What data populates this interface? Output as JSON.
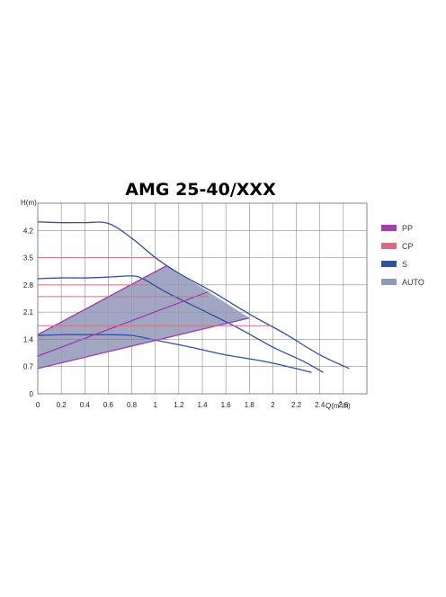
{
  "chart_data": {
    "type": "line",
    "title": "AMG 25-40/XXX",
    "ylabel": "H(m)",
    "xlabel_prefix": "Q(m",
    "xlabel_sup": "3",
    "xlabel_suffix": "/h)",
    "xlim": [
      0,
      2.8
    ],
    "ylim": [
      0,
      4.9
    ],
    "x_ticks": [
      "0",
      "0.2",
      "0.4",
      "0.6",
      "0.8",
      "1",
      "1.2",
      "1.4",
      "1.6",
      "1.8",
      "2",
      "2.2",
      "2.4",
      "2.6"
    ],
    "y_ticks": [
      "0",
      "0.7",
      "1.4",
      "2.1",
      "2.8",
      "3.5",
      "4.2"
    ],
    "grid": true,
    "legend_position": "right",
    "colors": {
      "PP": "#a040b0",
      "CP": "#d07080",
      "S": "#3050a0",
      "AUTO": "#9098b8"
    },
    "legend": [
      {
        "key": "PP",
        "label": "PP"
      },
      {
        "key": "CP",
        "label": "CP"
      },
      {
        "key": "S",
        "label": "S"
      },
      {
        "key": "AUTO",
        "label": "AUTO"
      }
    ],
    "auto_region": [
      [
        0,
        0.65
      ],
      [
        0,
        1.52
      ],
      [
        1.1,
        3.3
      ],
      [
        1.8,
        1.95
      ]
    ],
    "series": [
      {
        "key": "S",
        "points": [
          [
            0,
            4.42
          ],
          [
            0.2,
            4.4
          ],
          [
            0.4,
            4.4
          ],
          [
            0.6,
            4.38
          ],
          [
            0.8,
            4.0
          ],
          [
            1.0,
            3.5
          ],
          [
            1.2,
            3.1
          ],
          [
            1.5,
            2.6
          ],
          [
            1.8,
            2.05
          ],
          [
            2.1,
            1.55
          ],
          [
            2.4,
            1.0
          ],
          [
            2.65,
            0.65
          ]
        ]
      },
      {
        "key": "S",
        "points": [
          [
            0,
            2.96
          ],
          [
            0.2,
            2.98
          ],
          [
            0.4,
            2.98
          ],
          [
            0.6,
            3.0
          ],
          [
            0.8,
            3.03
          ],
          [
            0.9,
            2.95
          ],
          [
            1.1,
            2.6
          ],
          [
            1.4,
            2.15
          ],
          [
            1.7,
            1.7
          ],
          [
            2.0,
            1.2
          ],
          [
            2.25,
            0.85
          ],
          [
            2.43,
            0.55
          ]
        ]
      },
      {
        "key": "S",
        "points": [
          [
            0,
            1.5
          ],
          [
            0.2,
            1.52
          ],
          [
            0.4,
            1.52
          ],
          [
            0.6,
            1.52
          ],
          [
            0.8,
            1.5
          ],
          [
            1.0,
            1.38
          ],
          [
            1.3,
            1.2
          ],
          [
            1.6,
            1.0
          ],
          [
            1.9,
            0.85
          ],
          [
            2.1,
            0.72
          ],
          [
            2.33,
            0.55
          ]
        ]
      },
      {
        "key": "PP",
        "points": [
          [
            0,
            1.52
          ],
          [
            1.1,
            3.3
          ]
        ]
      },
      {
        "key": "PP",
        "points": [
          [
            0,
            0.97
          ],
          [
            1.45,
            2.62
          ]
        ]
      },
      {
        "key": "PP",
        "points": [
          [
            0,
            0.65
          ],
          [
            1.8,
            1.95
          ]
        ]
      },
      {
        "key": "CP",
        "points": [
          [
            0,
            3.5
          ],
          [
            1.0,
            3.5
          ]
        ]
      },
      {
        "key": "CP",
        "points": [
          [
            0,
            2.8
          ],
          [
            0.95,
            2.8
          ]
        ]
      },
      {
        "key": "CP",
        "points": [
          [
            0,
            2.5
          ],
          [
            1.45,
            2.5
          ]
        ]
      },
      {
        "key": "CP",
        "points": [
          [
            0,
            1.75
          ],
          [
            2.0,
            1.75
          ]
        ]
      },
      {
        "key": "CP",
        "points": [
          [
            0,
            1.4
          ],
          [
            1.1,
            1.4
          ]
        ]
      }
    ]
  }
}
